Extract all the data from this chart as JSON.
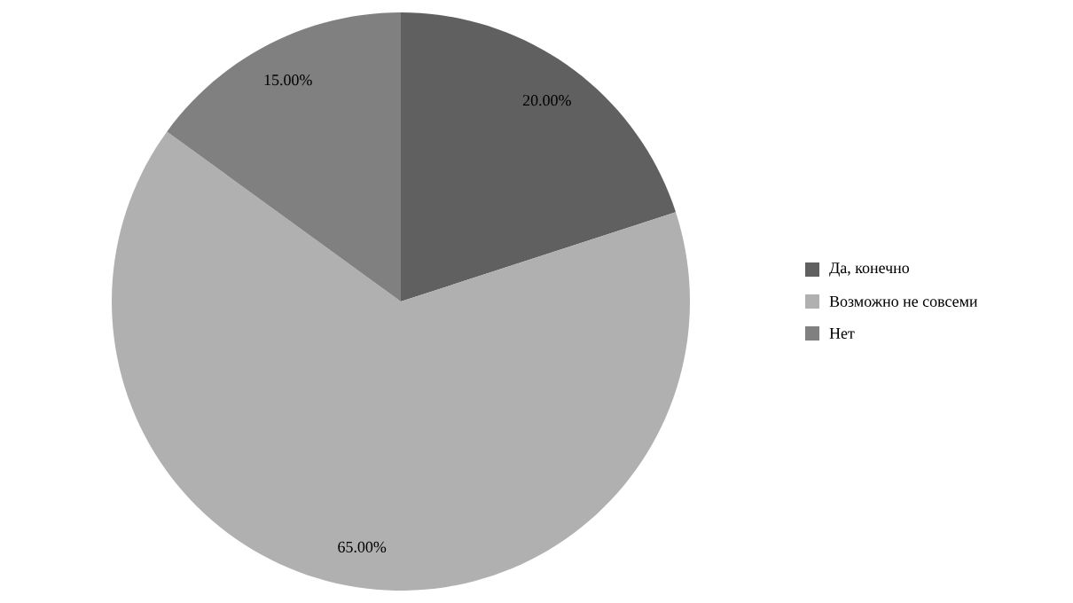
{
  "chart_data": {
    "type": "pie",
    "categories": [
      "Да, конечно",
      "Возможно не совсеми",
      "Нет"
    ],
    "values": [
      20,
      65,
      15
    ],
    "colors": [
      "#606060",
      "#b0b0b0",
      "#808080"
    ],
    "value_labels": [
      "20.00%",
      "65.00%",
      "15.00%"
    ],
    "legend": "right"
  }
}
